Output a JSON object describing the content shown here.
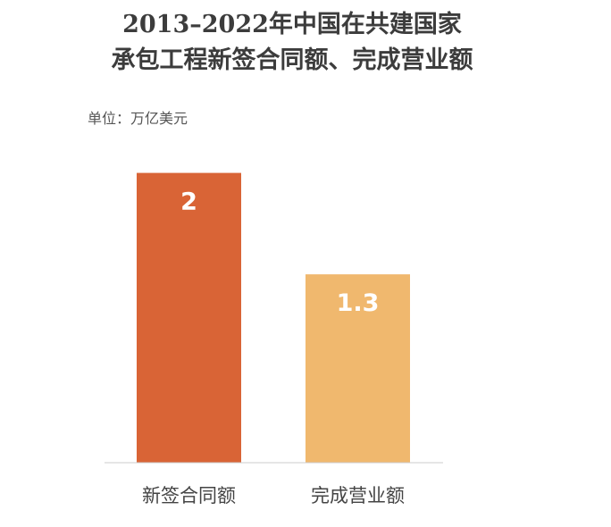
{
  "chart_data": {
    "type": "bar",
    "title_line1": "2013–2022年中国在共建国家",
    "title_line2": "承包工程新签合同额、完成营业额",
    "unit_label": "单位：万亿美元",
    "categories": [
      "新签合同额",
      "完成营业额"
    ],
    "values": [
      2,
      1.3
    ],
    "value_labels": [
      "2",
      "1.3"
    ],
    "colors": [
      "#d96436",
      "#f0b86e"
    ],
    "ylim": [
      0,
      2.17
    ],
    "grid": false,
    "legend": "none"
  }
}
